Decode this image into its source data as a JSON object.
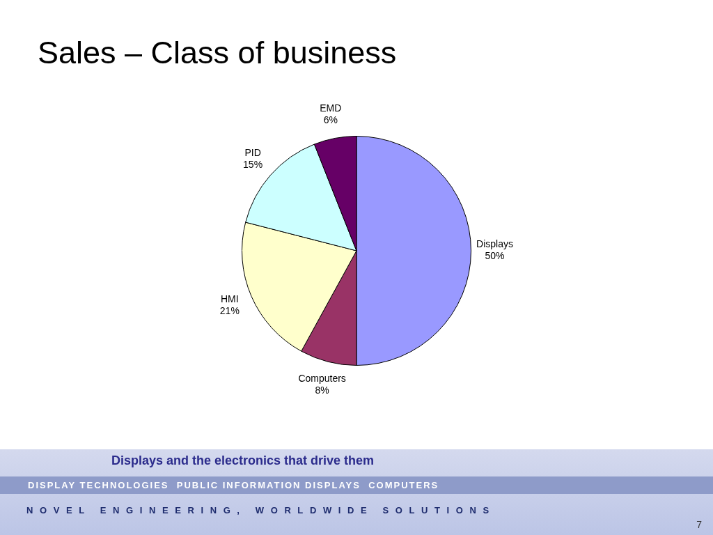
{
  "chart_data": {
    "type": "pie",
    "title": "Sales – Class of business",
    "categories": [
      "Displays",
      "Computers",
      "HMI",
      "PID",
      "EMD"
    ],
    "values": [
      50,
      8,
      21,
      15,
      6
    ],
    "value_labels": [
      "50%",
      "8%",
      "21%",
      "15%",
      "6%"
    ],
    "colors": [
      "#9999ff",
      "#993366",
      "#ffffcc",
      "#ccffff",
      "#660066"
    ],
    "annotations": [
      "Displays and the electronics that drive them",
      "DISPLAY TECHNOLOGIES  PUBLIC INFORMATION DISPLAYS  COMPUTERS",
      "NOVEL ENGINEERING, WORLDWIDE SOLUTIONS",
      "7"
    ]
  }
}
